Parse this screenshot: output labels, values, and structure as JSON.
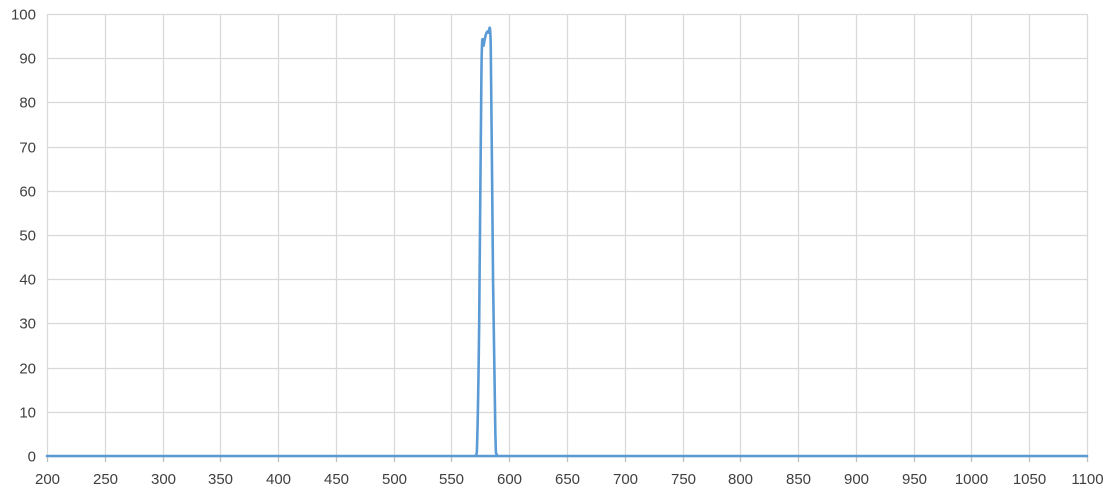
{
  "chart_data": {
    "type": "line",
    "title": "",
    "xlabel": "",
    "ylabel": "",
    "xlim": [
      200,
      1100
    ],
    "ylim": [
      0,
      100
    ],
    "x_ticks": [
      200,
      250,
      300,
      350,
      400,
      450,
      500,
      550,
      600,
      650,
      700,
      750,
      800,
      850,
      900,
      950,
      1000,
      1050,
      1100
    ],
    "y_ticks": [
      0,
      10,
      20,
      30,
      40,
      50,
      60,
      70,
      80,
      90,
      100
    ],
    "x_tick_labels": [
      "200",
      "250",
      "300",
      "350",
      "400",
      "450",
      "500",
      "550",
      "600",
      "650",
      "700",
      "750",
      "800",
      "850",
      "900",
      "950",
      "1000",
      "1050",
      "1100"
    ],
    "y_tick_labels": [
      "0",
      "10",
      "20",
      "30",
      "40",
      "50",
      "60",
      "70",
      "80",
      "90",
      "100"
    ],
    "grid": true,
    "legend": "none",
    "series": [
      {
        "color": "#5b9bd5",
        "x": [
          200,
          560,
          570,
          572,
          574,
          576,
          578,
          580,
          582,
          584,
          586,
          588,
          590,
          600,
          1100
        ],
        "y": [
          0,
          0,
          0,
          1,
          30,
          88,
          93,
          95.5,
          95.8,
          93,
          40,
          5,
          0,
          0,
          0
        ]
      }
    ]
  }
}
